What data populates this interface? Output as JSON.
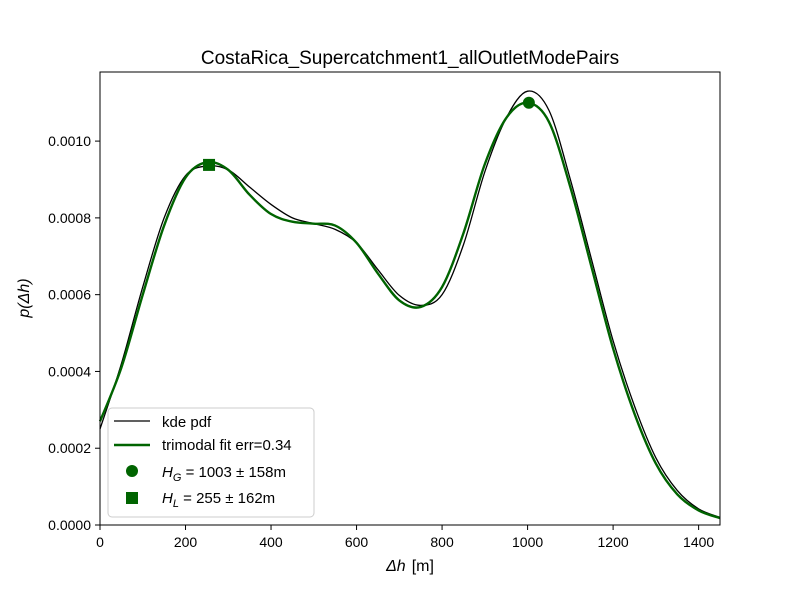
{
  "chart_data": {
    "type": "line",
    "title": "CostaRica_Supercatchment1_allOutletModePairs",
    "xlabel": {
      "symbol": "Δh",
      "unit": "[m]"
    },
    "ylabel": {
      "prefix": "p(",
      "symbol": "Δh",
      "suffix": ")"
    },
    "xlim": [
      0,
      1450
    ],
    "ylim": [
      0,
      0.00118
    ],
    "xticks": [
      0,
      200,
      400,
      600,
      800,
      1000,
      1200,
      1400
    ],
    "yticks": [
      0.0,
      0.0002,
      0.0004,
      0.0006,
      0.0008,
      0.001
    ],
    "ytick_labels": [
      "0.0000",
      "0.0002",
      "0.0004",
      "0.0006",
      "0.0008",
      "0.0010"
    ],
    "grid": false,
    "legend_position": "lower-left",
    "series": [
      {
        "name": "kde pdf",
        "color": "#000000",
        "x": [
          0,
          50,
          100,
          150,
          200,
          250,
          300,
          350,
          400,
          450,
          500,
          550,
          600,
          650,
          700,
          750,
          800,
          850,
          900,
          950,
          1000,
          1050,
          1100,
          1150,
          1200,
          1250,
          1300,
          1350,
          1400,
          1450
        ],
        "y": [
          0.00025,
          0.00042,
          0.00062,
          0.0008,
          0.00091,
          0.000935,
          0.000925,
          0.00088,
          0.000835,
          0.0008,
          0.000785,
          0.00077,
          0.000735,
          0.000665,
          0.000598,
          0.000572,
          0.0006,
          0.00073,
          0.00092,
          0.00106,
          0.00113,
          0.00108,
          0.0009,
          0.00069,
          0.00048,
          0.00031,
          0.000175,
          9e-05,
          4.2e-05,
          2e-05
        ]
      },
      {
        "name": "trimodal fit err=0.34",
        "color": "#006400",
        "x": [
          0,
          50,
          100,
          150,
          200,
          250,
          300,
          350,
          400,
          450,
          500,
          550,
          600,
          650,
          700,
          750,
          800,
          850,
          900,
          950,
          1000,
          1050,
          1100,
          1150,
          1200,
          1250,
          1300,
          1350,
          1400,
          1450
        ],
        "y": [
          0.00027,
          0.00041,
          0.0006,
          0.00078,
          0.000905,
          0.000945,
          0.000925,
          0.00086,
          0.00081,
          0.00079,
          0.000785,
          0.00078,
          0.000735,
          0.000655,
          0.000585,
          0.000568,
          0.00062,
          0.00076,
          0.00094,
          0.00106,
          0.0011,
          0.00105,
          0.00088,
          0.00067,
          0.00046,
          0.00029,
          0.00016,
          8e-05,
          3.8e-05,
          1.8e-05
        ]
      }
    ],
    "markers": [
      {
        "name": "H_G",
        "shape": "circle",
        "x": 1003,
        "y": 0.0011,
        "color": "#006400",
        "sym_main": "H",
        "sym_sub": "G",
        "label_rest": " = 1003 ± 158m"
      },
      {
        "name": "H_L",
        "shape": "square",
        "x": 255,
        "y": 0.000938,
        "color": "#006400",
        "sym_main": "H",
        "sym_sub": "L",
        "label_rest": " = 255 ± 162m"
      }
    ]
  }
}
